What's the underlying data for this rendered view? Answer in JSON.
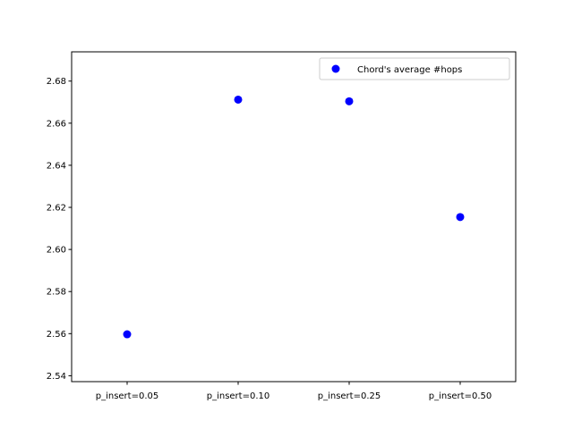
{
  "chart_data": {
    "type": "scatter",
    "title": "",
    "xlabel": "",
    "ylabel": "",
    "categories": [
      "p_insert=0.05",
      "p_insert=0.10",
      "p_insert=0.25",
      "p_insert=0.50"
    ],
    "series": [
      {
        "name": "Chord's average #hops",
        "color": "#0000ff",
        "marker": "circle",
        "values": [
          2.5597,
          2.6712,
          2.6704,
          2.6154
        ]
      }
    ],
    "ylim": [
      2.5372,
      2.6939
    ],
    "yticks": [
      "2.54",
      "2.56",
      "2.58",
      "2.60",
      "2.62",
      "2.64",
      "2.66",
      "2.68"
    ],
    "grid": false,
    "legend_position": "top-right"
  }
}
